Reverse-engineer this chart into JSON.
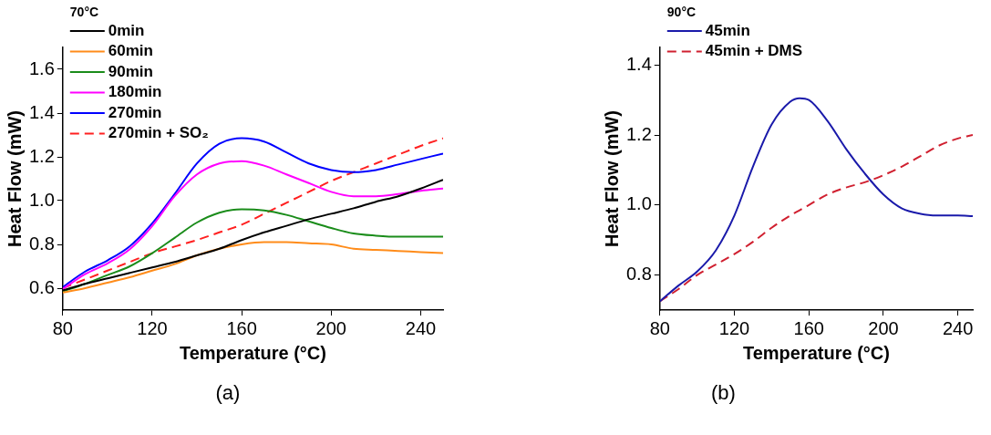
{
  "chart_data": [
    {
      "type": "line",
      "legend_title": "70°C",
      "xlabel": "Temperature (°C)",
      "ylabel": "Heat Flow (mW)",
      "xlim": [
        80,
        250
      ],
      "xticks": [
        80,
        120,
        160,
        200,
        240
      ],
      "ylim": [
        0.5,
        1.7
      ],
      "yticks": [
        0.6,
        0.8,
        {
          "value": 1,
          "label": "1.0"
        },
        1.2,
        1.4,
        1.6
      ],
      "legend": "top left",
      "marker": "none",
      "annotations": [
        "(a)"
      ],
      "x": [
        80,
        90,
        100,
        110,
        120,
        130,
        140,
        150,
        160,
        170,
        180,
        190,
        200,
        210,
        220,
        230,
        240,
        250
      ],
      "series": [
        {
          "name": "0min",
          "color": "#000000",
          "values": [
            0.59,
            0.62,
            0.645,
            0.67,
            0.695,
            0.72,
            0.75,
            0.78,
            0.82,
            0.855,
            0.885,
            0.915,
            0.94,
            0.965,
            0.995,
            1.02,
            1.055,
            1.095
          ]
        },
        {
          "name": "60min",
          "color": "#ff8c1a",
          "values": [
            0.58,
            0.6,
            0.625,
            0.65,
            0.68,
            0.71,
            0.75,
            0.78,
            0.8,
            0.81,
            0.81,
            0.805,
            0.8,
            0.78,
            0.775,
            0.77,
            0.765,
            0.76
          ]
        },
        {
          "name": "90min",
          "color": "#1a8c1a",
          "values": [
            0.585,
            0.62,
            0.66,
            0.7,
            0.76,
            0.83,
            0.9,
            0.945,
            0.96,
            0.955,
            0.935,
            0.905,
            0.875,
            0.85,
            0.84,
            0.835,
            0.835,
            0.835
          ]
        },
        {
          "name": "180min",
          "color": "#ff00ff",
          "values": [
            0.596,
            0.664,
            0.713,
            0.778,
            0.884,
            1.02,
            1.12,
            1.17,
            1.18,
            1.16,
            1.12,
            1.08,
            1.04,
            1.02,
            1.02,
            1.03,
            1.045,
            1.055
          ]
        },
        {
          "name": "270min",
          "color": "#0000ff",
          "values": [
            0.605,
            0.676,
            0.727,
            0.792,
            0.896,
            1.03,
            1.17,
            1.26,
            1.285,
            1.27,
            1.22,
            1.17,
            1.14,
            1.13,
            1.14,
            1.165,
            1.19,
            1.215
          ]
        },
        {
          "name": "270min + SO₂",
          "color": "#ff2020",
          "line_style": "dashed",
          "values": [
            0.6,
            0.64,
            0.68,
            0.72,
            0.76,
            0.79,
            0.82,
            0.855,
            0.89,
            0.94,
            0.99,
            1.04,
            1.09,
            1.13,
            1.17,
            1.21,
            1.25,
            1.285
          ]
        }
      ]
    },
    {
      "type": "line",
      "legend_title": "90°C",
      "xlabel": "Temperature (°C)",
      "ylabel": "Heat Flow (mW)",
      "xlim": [
        80,
        248
      ],
      "xticks": [
        80,
        120,
        160,
        200,
        240
      ],
      "ylim": [
        0.7,
        1.45
      ],
      "yticks": [
        0.8,
        {
          "value": 1,
          "label": "1.0"
        },
        1.2,
        1.4
      ],
      "legend": "top left",
      "marker": "none",
      "annotations": [
        "(b)"
      ],
      "x": [
        80,
        90,
        100,
        110,
        120,
        130,
        140,
        150,
        155,
        160,
        170,
        180,
        190,
        200,
        210,
        220,
        230,
        240,
        248
      ],
      "series": [
        {
          "name": "45min",
          "color": "#1a1aaa",
          "values": [
            0.725,
            0.77,
            0.81,
            0.87,
            0.97,
            1.11,
            1.23,
            1.295,
            1.305,
            1.3,
            1.24,
            1.16,
            1.09,
            1.03,
            0.99,
            0.975,
            0.97,
            0.97,
            0.968
          ]
        },
        {
          "name": "45min + DMS",
          "color": "#d02030",
          "line_style": "dashed",
          "values": [
            0.725,
            0.76,
            0.8,
            0.83,
            0.86,
            0.895,
            0.935,
            0.97,
            0.985,
            1.0,
            1.03,
            1.05,
            1.065,
            1.085,
            1.11,
            1.14,
            1.17,
            1.19,
            1.2
          ]
        }
      ]
    }
  ]
}
